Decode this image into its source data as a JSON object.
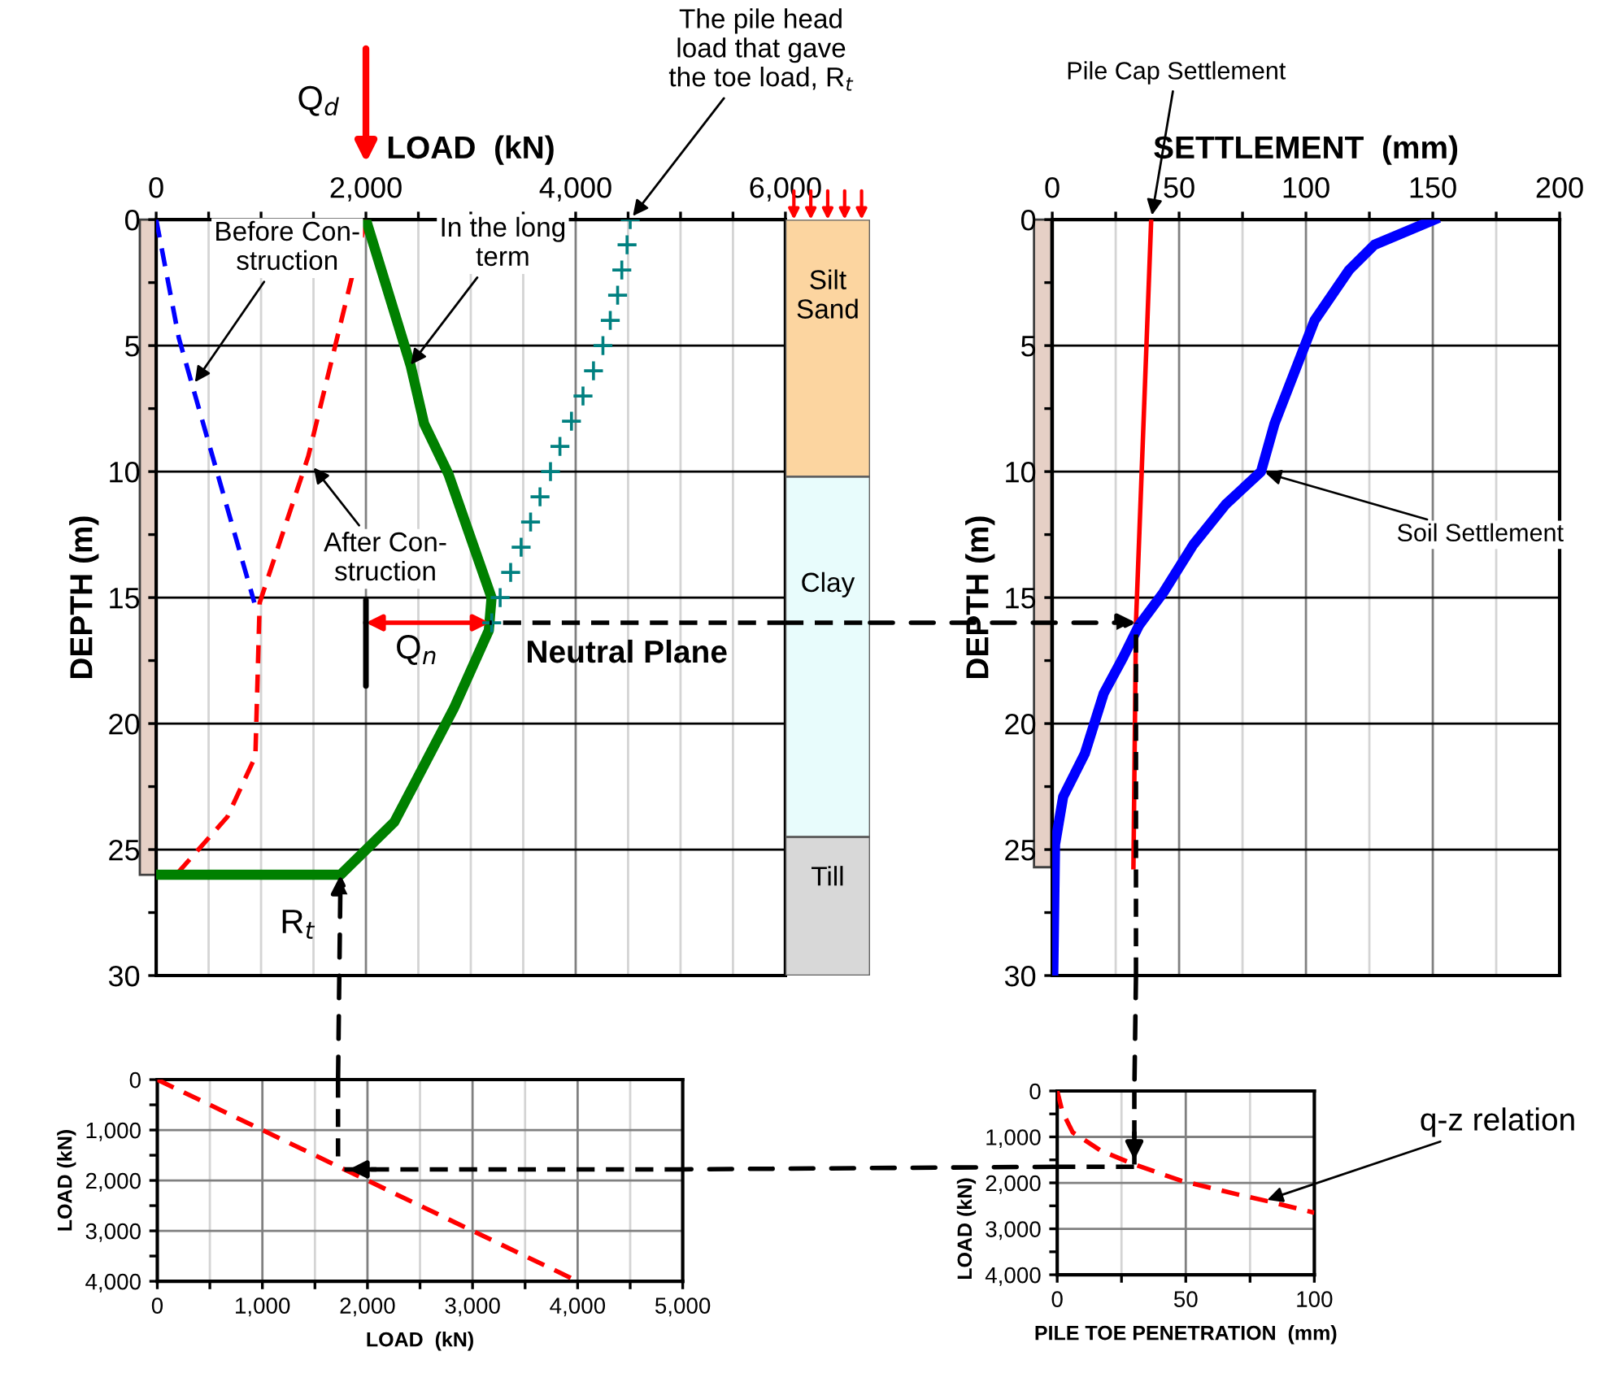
{
  "chart_data": [
    {
      "type": "line",
      "xlabel": "LOAD  (kN)",
      "ylabel": "DEPTH (m)",
      "xlim": [
        0,
        6000
      ],
      "ylim": [
        30,
        0
      ],
      "xticks": [
        0,
        {
          "value": 500,
          "label": null
        },
        {
          "value": 1000,
          "label": null
        },
        {
          "value": 1500,
          "label": null
        },
        {
          "value": 2000,
          "label": "2,000"
        },
        {
          "value": 2500,
          "label": null
        },
        {
          "value": 3000,
          "label": null
        },
        {
          "value": 3500,
          "label": null
        },
        {
          "value": 4000,
          "label": "4,000"
        },
        {
          "value": 4500,
          "label": null
        },
        {
          "value": 5000,
          "label": null
        },
        {
          "value": 5500,
          "label": null
        },
        {
          "value": 6000,
          "label": "6,000"
        }
      ],
      "yticks": [
        0,
        {
          "value": 2.5,
          "label": null
        },
        5,
        {
          "value": 7.5,
          "label": null
        },
        10,
        {
          "value": 12.5,
          "label": null
        },
        15,
        {
          "value": 17.5,
          "label": null
        },
        20,
        {
          "value": 22.5,
          "label": null
        },
        25,
        {
          "value": 27.5,
          "label": null
        },
        30
      ],
      "grid": true,
      "series": [
        {
          "type": "line",
          "color": "#0000ff",
          "line_style": "dashed",
          "x": [
            0,
            216,
            524,
            936
          ],
          "values": [
            0,
            4.7,
            9.2,
            15.2
          ]
        },
        {
          "type": "line",
          "color": "#ff0000",
          "line_style": "dashed",
          "x": [
            2000,
            1450,
            987,
            946,
            679,
            190
          ],
          "values": [
            0,
            9.4,
            15.2,
            21.3,
            23.7,
            26
          ]
        },
        {
          "type": "line",
          "color": "#008000",
          "line_style": "solid",
          "x": [
            2000,
            2427,
            2555,
            2787,
            3198,
            3172,
            2838,
            2272,
            1758,
            0
          ],
          "values": [
            0,
            5.8,
            8.1,
            10.1,
            15,
            16.3,
            19.4,
            23.9,
            26,
            26
          ]
        },
        {
          "type": "scatter",
          "color": "#008080",
          "marker": "cross",
          "x": [
            4520,
            4490,
            4440,
            4400,
            4330,
            4260,
            4170,
            4070,
            3960,
            3850,
            3760,
            3660,
            3570,
            3480,
            3380,
            3280,
            3200
          ],
          "values": [
            0,
            1,
            2,
            3,
            4,
            5,
            6,
            7,
            8,
            9,
            10,
            11,
            12,
            13,
            14,
            15,
            16
          ]
        }
      ],
      "ref_lines": [
        {
          "axis": "y",
          "value": 16,
          "label": "Neutral Plane",
          "line_style": "dashed",
          "color": "#000000"
        }
      ],
      "annotations": [
        "Q$_{d}$",
        {
          "text": "The pile head\nload that gave\nthe toe load, R$_{t}$",
          "x": 4519,
          "y": 0
        },
        {
          "text": "Before Con-\nstruction",
          "x": 345,
          "y": 6.6
        },
        {
          "text": "In the long\nterm",
          "x": 2401,
          "y": 5.9
        },
        {
          "text": "After Con-\nstruction",
          "x": 1475,
          "y": 9.7
        },
        {
          "text": "Q$_{n}$",
          "x": 3180,
          "y": 16
        },
        {
          "text": "R$_{t}$",
          "x": 1758,
          "y": 26
        }
      ]
    },
    {
      "type": "bar",
      "stacked": true,
      "categories": [
        null
      ],
      "ylim": [
        30,
        0
      ],
      "tick_labels": false,
      "series": [
        {
          "name": "Silt\nSand",
          "color": "#fcd5a0",
          "values": [
            10.2
          ]
        },
        {
          "name": "Clay",
          "color": "#e8fcfc",
          "values": [
            14.3
          ]
        },
        {
          "name": "Till",
          "color": "#d8d8d8",
          "values": [
            5.5
          ]
        }
      ],
      "ref_lines": [
        {
          "axis": "y",
          "value": 16,
          "line_style": "dashed",
          "color": "#000000"
        }
      ]
    },
    {
      "type": "line",
      "xlabel": "SETTLEMENT  (mm)",
      "ylabel": "DEPTH (m)",
      "xlim": [
        0,
        200
      ],
      "ylim": [
        30,
        0
      ],
      "xticks": [
        0,
        {
          "value": 25,
          "label": null
        },
        50,
        {
          "value": 75,
          "label": null
        },
        100,
        {
          "value": 125,
          "label": null
        },
        150,
        {
          "value": 175,
          "label": null
        },
        200
      ],
      "yticks": [
        0,
        {
          "value": 2.5,
          "label": null
        },
        5,
        {
          "value": 7.5,
          "label": null
        },
        10,
        {
          "value": 12.5,
          "label": null
        },
        15,
        {
          "value": 17.5,
          "label": null
        },
        20,
        {
          "value": 22.5,
          "label": null
        },
        25,
        {
          "value": 27.5,
          "label": null
        },
        30
      ],
      "grid": true,
      "series": [
        {
          "type": "line",
          "color": "#ff0000",
          "line_style": "solid",
          "x": [
            39,
            33,
            32
          ],
          "values": [
            0,
            16,
            25.7
          ]
        },
        {
          "type": "line",
          "color": "#0000ff",
          "line_style": "solid",
          "x": [
            150.6,
            127,
            117,
            103.4,
            98,
            87.6,
            82.3,
            68.4,
            55.6,
            43.8,
            34.2,
            27.8,
            20.3,
            12.8,
            4.3,
            1.1,
            0.4
          ],
          "values": [
            0,
            1,
            2,
            4,
            5.4,
            8.1,
            10,
            11.3,
            12.9,
            14.8,
            16.1,
            17.4,
            18.8,
            21.2,
            22.9,
            24.8,
            30
          ]
        }
      ],
      "ref_lines": [
        {
          "axis": "x",
          "value": 33,
          "line_style": "dashed",
          "color": "#000000"
        }
      ],
      "annotations": [
        {
          "text": "Pile Cap Settlement",
          "x": 39,
          "y": 0
        },
        {
          "text": "Soil Settlement",
          "x": 82.3,
          "y": 10
        }
      ]
    },
    {
      "type": "line",
      "xlabel": "LOAD  (kN)",
      "ylabel": "LOAD (kN)",
      "xlim": [
        0,
        5000
      ],
      "ylim": [
        4000,
        0
      ],
      "xticks": [
        0,
        {
          "value": 500,
          "label": null
        },
        {
          "value": 1000,
          "label": "1,000"
        },
        {
          "value": 1500,
          "label": null
        },
        {
          "value": 2000,
          "label": "2,000"
        },
        {
          "value": 2500,
          "label": null
        },
        {
          "value": 3000,
          "label": "3,000"
        },
        {
          "value": 3500,
          "label": null
        },
        {
          "value": 4000,
          "label": "4,000"
        },
        {
          "value": 4500,
          "label": null
        },
        {
          "value": 5000,
          "label": "5,000"
        }
      ],
      "yticks": [
        0,
        {
          "value": 500,
          "label": null
        },
        {
          "value": 1000,
          "label": "1,000"
        },
        {
          "value": 1500,
          "label": null
        },
        {
          "value": 2000,
          "label": "2,000"
        },
        {
          "value": 2500,
          "label": null
        },
        {
          "value": 3000,
          "label": "3,000"
        },
        {
          "value": 3500,
          "label": null
        },
        {
          "value": 4000,
          "label": "4,000"
        }
      ],
      "grid": true,
      "series": [
        {
          "type": "line",
          "color": "#ff0000",
          "line_style": "dashed",
          "x": [
            0,
            4000
          ],
          "values": [
            0,
            4000
          ]
        }
      ],
      "ref_lines": [
        {
          "axis": "x",
          "value": 1720,
          "line_style": "dashed",
          "color": "#000000"
        },
        {
          "axis": "y",
          "value": 1780,
          "line_style": "dashed",
          "color": "#000000"
        }
      ]
    },
    {
      "type": "line",
      "xlabel": "PILE TOE PENETRATION  (mm)",
      "ylabel": "LOAD (kN)",
      "xlim": [
        0,
        100
      ],
      "ylim": [
        4000,
        0
      ],
      "xticks": [
        0,
        {
          "value": 25,
          "label": null
        },
        50,
        {
          "value": 75,
          "label": null
        },
        100
      ],
      "yticks": [
        0,
        {
          "value": 500,
          "label": null
        },
        {
          "value": 1000,
          "label": "1,000"
        },
        {
          "value": 1500,
          "label": null
        },
        {
          "value": 2000,
          "label": "2,000"
        },
        {
          "value": 2500,
          "label": null
        },
        {
          "value": 3000,
          "label": "3,000"
        },
        {
          "value": 3500,
          "label": null
        },
        {
          "value": 4000,
          "label": "4,000"
        }
      ],
      "grid": true,
      "series": [
        {
          "type": "line",
          "color": "#ff0000",
          "line_style": "dashed",
          "x": [
            0,
            2,
            6,
            17,
            30,
            48,
            70,
            82,
            100
          ],
          "values": [
            0,
            450,
            900,
            1300,
            1600,
            1950,
            2250,
            2400,
            2650
          ]
        }
      ],
      "ref_lines": [
        {
          "axis": "x",
          "value": 30,
          "line_style": "dashed",
          "color": "#000000"
        },
        {
          "axis": "y",
          "value": 1650,
          "line_style": "dashed",
          "color": "#000000"
        }
      ],
      "annotations": [
        {
          "text": "q-z relation",
          "x": 80,
          "y": 2400
        }
      ]
    }
  ]
}
